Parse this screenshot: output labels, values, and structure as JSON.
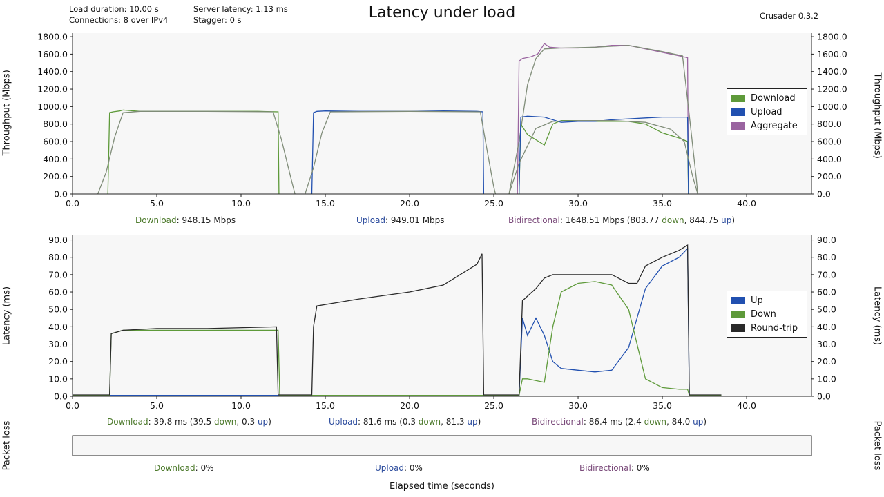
{
  "header": {
    "title": "Latency under load",
    "load_duration": "Load duration: 10.00 s",
    "connections": "Connections: 8 over IPv4",
    "server_latency": "Server latency: 1.13 ms",
    "stagger": "Stagger: 0 s",
    "version": "Crusader 0.3.2"
  },
  "summary": {
    "throughput": {
      "download_label": "Download",
      "download_value": ": 948.15 Mbps",
      "upload_label": "Upload",
      "upload_value": ": 949.01 Mbps",
      "bidi_label": "Bidirectional",
      "bidi_value": ": 1648.51 Mbps (803.77 ",
      "bidi_down_val": "down",
      "bidi_sep": ", 844.75 ",
      "bidi_up_val": "up",
      "bidi_end": ")"
    },
    "latency": {
      "download_label": "Download",
      "download_value": ": 39.8 ms  (39.5 ",
      "d_down": "down",
      "d_sep": ", 0.3 ",
      "d_up": "up",
      "d_end": ")",
      "upload_label": "Upload",
      "upload_value": ": 81.6 ms  (0.3 ",
      "u_down": "down",
      "u_sep": ", 81.3 ",
      "u_up": "up",
      "u_end": ")",
      "bidi_label": "Bidirectional",
      "bidi_value": ": 86.4 ms  (2.4 ",
      "b_down": "down",
      "b_sep": ", 84.0 ",
      "b_up": "up",
      "b_end": ")"
    },
    "loss": {
      "download_label": "Download",
      "download_value": ": 0%",
      "upload_label": "Upload",
      "upload_value": ": 0%",
      "bidi_label": "Bidirectional",
      "bidi_value": ": 0%"
    }
  },
  "colors": {
    "download": "#5e9a3a",
    "upload": "#2150b0",
    "aggregate": "#9a64a0",
    "roundtrip": "#2a2a2a",
    "smooth": "#7f8c78"
  },
  "chart_data": [
    {
      "type": "line",
      "title": "Throughput",
      "ylabel": "Throughput (Mbps)",
      "xlabel": "",
      "xlim": [
        0,
        43.85
      ],
      "ylim": [
        0,
        1840
      ],
      "xticks": [
        "0.0",
        "5.0",
        "10.0",
        "15.0",
        "20.0",
        "25.0",
        "30.0",
        "35.0",
        "40.0"
      ],
      "xtick_values": [
        0,
        5,
        10,
        15,
        20,
        25,
        30,
        35,
        40
      ],
      "yticks": [
        "0.0",
        "200.0",
        "400.0",
        "600.0",
        "800.0",
        "1000.0",
        "1200.0",
        "1400.0",
        "1600.0",
        "1800.0"
      ],
      "ytick_values": [
        0,
        200,
        400,
        600,
        800,
        1000,
        1200,
        1400,
        1600,
        1800
      ],
      "legend": [
        "Download",
        "Upload",
        "Aggregate"
      ],
      "legend_position": "right",
      "series": [
        {
          "name": "Download",
          "color": "download",
          "x": [
            2.1,
            2.2,
            2.4,
            2.8,
            3,
            4,
            6,
            8,
            10,
            11,
            12.2,
            12.25
          ],
          "y": [
            0,
            930,
            940,
            950,
            960,
            945,
            945,
            945,
            945,
            945,
            940,
            0
          ]
        },
        {
          "name": "Download smoothed",
          "color": "smooth",
          "x": [
            1.5,
            2,
            2.5,
            3,
            4,
            8,
            11.9,
            12.4,
            13,
            13.2
          ],
          "y": [
            0,
            250,
            650,
            930,
            945,
            945,
            940,
            620,
            150,
            0
          ]
        },
        {
          "name": "Upload",
          "color": "upload",
          "x": [
            14.2,
            14.3,
            14.5,
            15,
            17,
            20,
            22,
            24,
            24.35,
            24.4
          ],
          "y": [
            0,
            930,
            945,
            950,
            945,
            945,
            950,
            945,
            940,
            0
          ]
        },
        {
          "name": "Upload smoothed",
          "color": "smooth",
          "x": [
            13.8,
            14.3,
            14.8,
            15.3,
            20,
            24.2,
            24.6,
            25,
            25.1
          ],
          "y": [
            0,
            300,
            700,
            940,
            945,
            940,
            500,
            80,
            0
          ]
        },
        {
          "name": "Aggregate",
          "color": "aggregate",
          "x": [
            26.4,
            26.5,
            26.7,
            27.2,
            27.6,
            28,
            28.3,
            29,
            30,
            31,
            32,
            33,
            34,
            35,
            36,
            36.5,
            36.55
          ],
          "y": [
            0,
            1520,
            1550,
            1570,
            1600,
            1720,
            1680,
            1670,
            1670,
            1680,
            1700,
            1700,
            1660,
            1620,
            1580,
            1560,
            0
          ]
        },
        {
          "name": "Aggregate smoothed",
          "color": "smooth",
          "x": [
            25.9,
            26.5,
            27,
            27.5,
            28,
            29,
            31,
            33,
            35,
            36.2,
            36.6,
            37,
            37.1
          ],
          "y": [
            0,
            600,
            1250,
            1550,
            1660,
            1670,
            1680,
            1700,
            1630,
            1580,
            900,
            200,
            0
          ]
        },
        {
          "name": "Download bidi",
          "color": "download",
          "x": [
            26.5,
            26.6,
            27,
            27.5,
            28,
            28.5,
            29,
            30,
            31,
            32,
            33,
            34,
            35,
            36,
            36.5,
            36.55
          ],
          "y": [
            0,
            800,
            680,
            620,
            560,
            800,
            840,
            840,
            830,
            830,
            830,
            800,
            700,
            640,
            600,
            0
          ]
        },
        {
          "name": "Upload bidi",
          "color": "upload",
          "x": [
            26.5,
            26.6,
            27,
            28,
            29,
            30,
            31,
            32,
            33,
            34,
            35,
            36,
            36.5,
            36.55
          ],
          "y": [
            0,
            880,
            890,
            880,
            820,
            830,
            830,
            850,
            860,
            870,
            880,
            880,
            880,
            0
          ]
        },
        {
          "name": "Down/Up smoothed",
          "color": "smooth",
          "x": [
            25.9,
            26.5,
            27.5,
            28.5,
            30,
            32,
            34,
            35.5,
            36.3,
            36.8,
            37.1
          ],
          "y": [
            0,
            350,
            750,
            830,
            840,
            840,
            820,
            740,
            600,
            200,
            0
          ]
        }
      ]
    },
    {
      "type": "line",
      "title": "Latency",
      "ylabel": "Latency (ms)",
      "xlabel": "",
      "xlim": [
        0,
        43.85
      ],
      "ylim": [
        0,
        93
      ],
      "xticks": [
        "0.0",
        "5.0",
        "10.0",
        "15.0",
        "20.0",
        "25.0",
        "30.0",
        "35.0",
        "40.0"
      ],
      "xtick_values": [
        0,
        5,
        10,
        15,
        20,
        25,
        30,
        35,
        40
      ],
      "yticks": [
        "0.0",
        "10.0",
        "20.0",
        "30.0",
        "40.0",
        "50.0",
        "60.0",
        "70.0",
        "80.0",
        "90.0"
      ],
      "ytick_values": [
        0,
        10,
        20,
        30,
        40,
        50,
        60,
        70,
        80,
        90
      ],
      "legend": [
        "Up",
        "Down",
        "Round-trip"
      ],
      "legend_position": "right",
      "series": [
        {
          "name": "Up",
          "color": "upload",
          "x": [
            0,
            2.2,
            3,
            12.2,
            14.3,
            24.4,
            26.5,
            26.7,
            27,
            27.5,
            28,
            28.5,
            29,
            30,
            31,
            32,
            33,
            34,
            35,
            36,
            36.5,
            36.6
          ],
          "y": [
            0.5,
            0.5,
            0.5,
            0.5,
            0.5,
            0.5,
            0.5,
            45,
            35,
            45,
            35,
            20,
            16,
            15,
            14,
            15,
            28,
            62,
            75,
            80,
            85,
            1
          ]
        },
        {
          "name": "Down",
          "color": "download",
          "x": [
            0,
            2.2,
            2.3,
            3,
            12.2,
            12.3,
            26.5,
            26.7,
            27,
            28,
            28.5,
            29,
            30,
            31,
            32,
            33,
            34,
            35,
            36,
            36.5,
            36.6,
            38.5
          ],
          "y": [
            0.5,
            0.5,
            36,
            38,
            38,
            0.5,
            0.5,
            10,
            10,
            8,
            40,
            60,
            65,
            66,
            64,
            50,
            10,
            5,
            4,
            4,
            0.5,
            0.5
          ]
        },
        {
          "name": "Round-trip",
          "color": "roundtrip",
          "x": [
            0,
            2.1,
            2.2,
            2.3,
            3,
            5,
            8,
            12.1,
            12.2,
            14.2,
            14.3,
            14.5,
            17,
            20,
            22,
            24,
            24.3,
            24.4,
            26.5,
            26.7,
            27.5,
            28,
            28.5,
            30,
            32,
            33,
            33.5,
            34,
            35,
            36,
            36.5,
            36.6,
            38.5
          ],
          "y": [
            0.8,
            0.8,
            0.8,
            36,
            38,
            39,
            39,
            40,
            0.8,
            0.8,
            40,
            52,
            56,
            60,
            64,
            76,
            82,
            0.8,
            0.8,
            55,
            62,
            68,
            70,
            70,
            70,
            65,
            65,
            75,
            80,
            84,
            87,
            0.8,
            0.8
          ]
        }
      ]
    },
    {
      "type": "line",
      "title": "Packet loss",
      "ylabel": "Packet loss",
      "xlabel": "Elapsed time (seconds)",
      "series": []
    }
  ]
}
